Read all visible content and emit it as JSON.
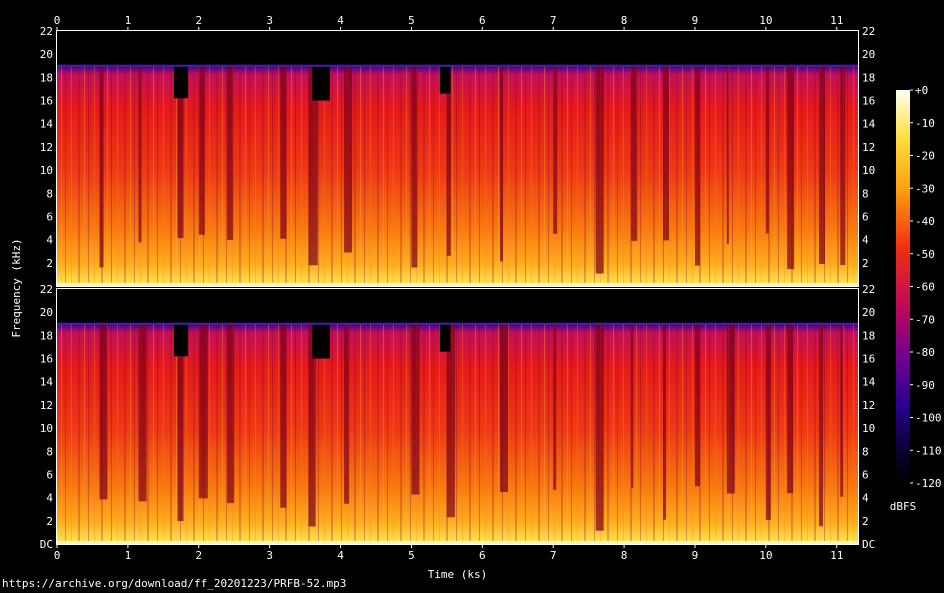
{
  "chart_data": {
    "type": "heatmap",
    "subtype": "spectrogram",
    "channels": 2,
    "xlabel": "Time (ks)",
    "ylabel": "Frequency (kHz)",
    "xlim": [
      0,
      11.3
    ],
    "ylim": [
      0,
      22
    ],
    "x_ticks": [
      "0",
      "1",
      "2",
      "3",
      "4",
      "5",
      "6",
      "7",
      "8",
      "9",
      "10",
      "11"
    ],
    "y_ticks": [
      "DC",
      "2",
      "4",
      "6",
      "8",
      "10",
      "12",
      "14",
      "16",
      "18",
      "20",
      "22"
    ],
    "colorbar": {
      "label": "dBFS",
      "range": [
        -120,
        0
      ],
      "ticks": [
        "+0",
        "-10",
        "-20",
        "-30",
        "-40",
        "-50",
        "-60",
        "-70",
        "-80",
        "-90",
        "-100",
        "-110",
        "-120"
      ]
    },
    "spectral_cutoff_khz": 19,
    "colors": {
      "background": "#000000",
      "low_level": "#2a0070",
      "mid_level": "#e0201a",
      "high_level": "#ffd020",
      "peak": "#fffbe0"
    }
  },
  "source": "https://archive.org/download/ff_20201223/PRFB-52.mp3"
}
